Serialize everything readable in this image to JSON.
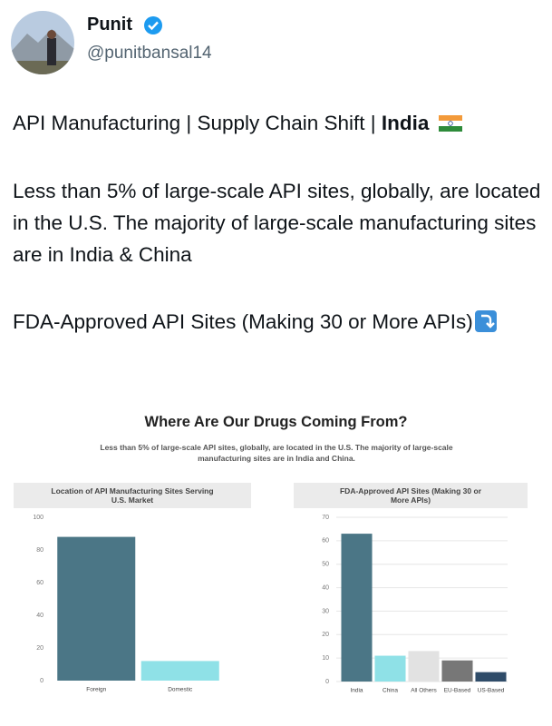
{
  "author": {
    "name": "Punit",
    "handle": "@punitbansal14"
  },
  "post": {
    "headline": "API Manufacturing | Supply Chain Shift |",
    "headline_bold": "India",
    "paragraph": "Less than 5% of large-scale API sites, globally, are located in the U.S. The majority of large-scale manufacturing sites are in India & China",
    "caption": "FDA-Approved API Sites (Making 30 or More APIs)"
  },
  "image": {
    "title": "Where Are Our Drugs Coming From?",
    "subtitle": "Less than 5% of large-scale API sites, globally, are located in the U.S. The majority of large-scale manufacturing sites are in India and China."
  },
  "chart_data": [
    {
      "type": "bar",
      "title": "Location of API Manufacturing Sites Serving U.S. Market",
      "categories": [
        "Foreign",
        "Domestic"
      ],
      "values": [
        88,
        12
      ],
      "colors": [
        "#4b7686",
        "#8fe1e7"
      ],
      "ylim": [
        0,
        100
      ],
      "yticks": [
        0,
        20,
        40,
        60,
        80,
        100
      ],
      "grid": false
    },
    {
      "type": "bar",
      "title": "FDA-Approved API Sites (Making 30 or More APIs)",
      "categories": [
        "India",
        "China",
        "All Others",
        "EU-Based",
        "US-Based"
      ],
      "values": [
        63,
        11,
        13,
        9,
        4
      ],
      "colors": [
        "#4b7686",
        "#8fe1e7",
        "#e2e2e2",
        "#777777",
        "#2f4c69"
      ],
      "ylim": [
        0,
        70
      ],
      "yticks": [
        0,
        10,
        20,
        30,
        40,
        50,
        60,
        70
      ],
      "grid": true
    }
  ]
}
